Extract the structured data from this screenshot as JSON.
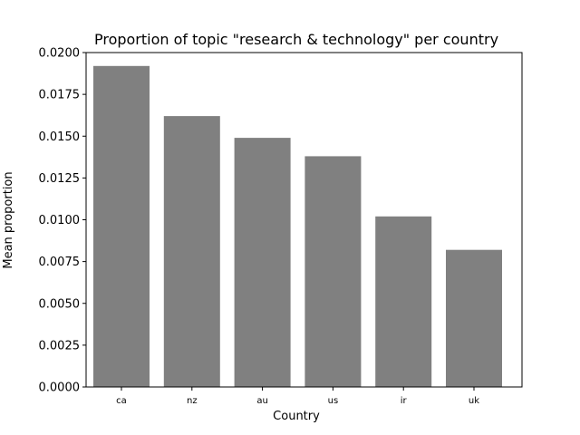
{
  "chart_data": {
    "type": "bar",
    "title": "Proportion of topic \"research & technology\" per country",
    "xlabel": "Country",
    "ylabel": "Mean proportion",
    "categories": [
      "ca",
      "nz",
      "au",
      "us",
      "ir",
      "uk"
    ],
    "values": [
      0.0192,
      0.0162,
      0.0149,
      0.0138,
      0.0102,
      0.0082
    ],
    "ylim": [
      0,
      0.02
    ],
    "yticks": [
      "0.0000",
      "0.0025",
      "0.0050",
      "0.0075",
      "0.0100",
      "0.0125",
      "0.0150",
      "0.0175",
      "0.0200"
    ],
    "bar_color": "#808080",
    "grid": false,
    "legend": "none"
  }
}
